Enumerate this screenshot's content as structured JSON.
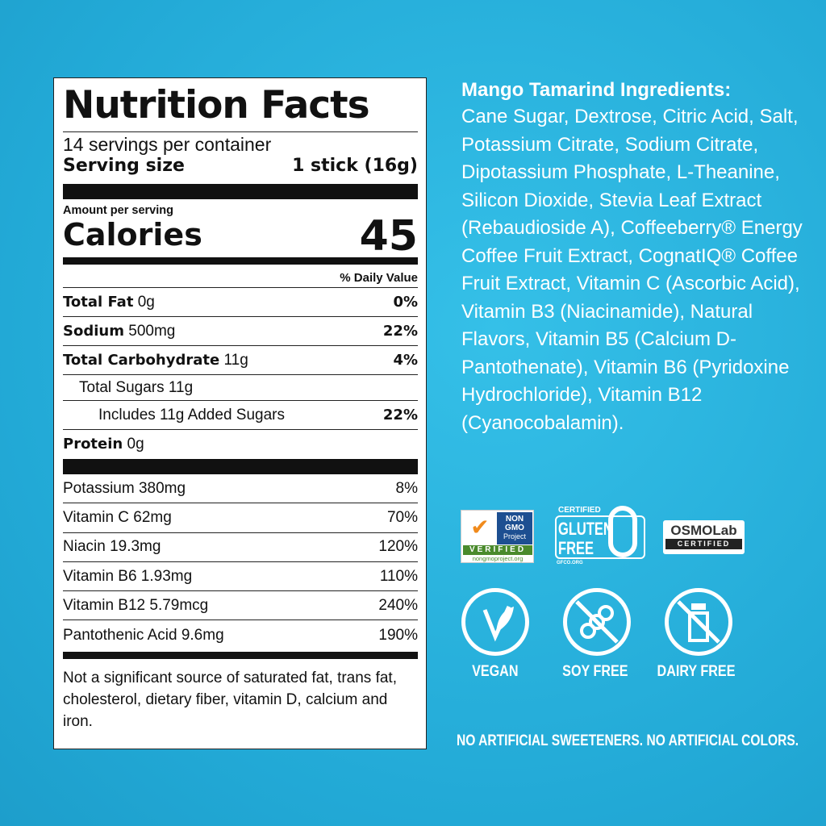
{
  "nutrition": {
    "title": "Nutrition Facts",
    "servings": "14 servings per container",
    "serving_size_label": "Serving size",
    "serving_size_value": "1 stick (16g)",
    "amount_per_serving": "Amount per serving",
    "calories_label": "Calories",
    "calories_value": "45",
    "daily_value_header": "% Daily Value",
    "nutrients": [
      {
        "name": "Total Fat",
        "amount": "0g",
        "dv": "0%"
      },
      {
        "name": "Sodium",
        "amount": "500mg",
        "dv": "22%"
      },
      {
        "name": "Total Carbohydrate",
        "amount": "11g",
        "dv": "4%"
      },
      {
        "name": "Total Sugars 11g",
        "amount": "",
        "dv": ""
      },
      {
        "name": "Includes 11g Added Sugars",
        "amount": "",
        "dv": "22%"
      },
      {
        "name": "Protein",
        "amount": "0g",
        "dv": ""
      }
    ],
    "vitamins": [
      {
        "name": "Potassium 380mg",
        "dv": "8%"
      },
      {
        "name": "Vitamin C 62mg",
        "dv": "70%"
      },
      {
        "name": "Niacin 19.3mg",
        "dv": "120%"
      },
      {
        "name": "Vitamin B6 1.93mg",
        "dv": "110%"
      },
      {
        "name": "Vitamin B12 5.79mcg",
        "dv": "240%"
      },
      {
        "name": "Pantothenic Acid 9.6mg",
        "dv": "190%"
      }
    ],
    "footnote": "Not a significant source of saturated fat, trans fat, cholesterol, dietary fiber, vitamin D, calcium and iron."
  },
  "ingredients": {
    "heading": "Mango Tamarind Ingredients:",
    "text": "Cane Sugar, Dextrose, Citric Acid, Salt, Potassium Citrate, Sodium Citrate, Dipotassium Phosphate, L-Theanine, Silicon Dioxide, Stevia Leaf Extract (Rebaudioside A), Coffeeberry® Energy Coffee Fruit Extract, CognatIQ® Coffee Fruit Extract, Vitamin C (Ascorbic Acid), Vitamin B3 (Niacinamide), Natural Flavors, Vitamin B5 (Calcium D-Pantothenate), Vitamin B6 (Pyridoxine Hydrochloride), Vitamin B12 (Cyanocobalamin)."
  },
  "badges": {
    "nongmo": {
      "line1": "NON",
      "line2": "GMO",
      "line3": "Project",
      "verified": "VERIFIED",
      "url": "nongmoproject.org"
    },
    "gluten": {
      "certified": "CERTIFIED",
      "line1": "GLUTEN",
      "line2": "FREE",
      "url": "GFCO.ORG"
    },
    "osmo": {
      "name": "OSMOLab",
      "certified": "CERTIFIED"
    }
  },
  "icons": [
    {
      "icon": "vegan-leaf-icon",
      "label": "VEGAN"
    },
    {
      "icon": "soy-free-icon",
      "label": "SOY FREE"
    },
    {
      "icon": "dairy-free-icon",
      "label": "DAIRY FREE"
    }
  ],
  "tagline": "NO ARTIFICIAL SWEETENERS. NO ARTIFICIAL COLORS.",
  "colors": {
    "background": "#29b3df",
    "text": "#ffffff",
    "label": "#111111"
  }
}
